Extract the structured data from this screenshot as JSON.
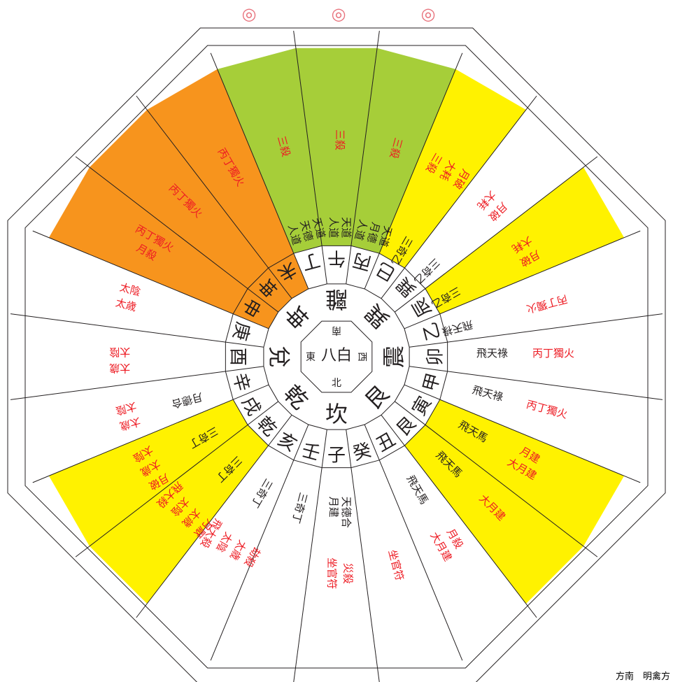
{
  "colors": {
    "yellow": "#fff200",
    "green": "#a6ce39",
    "orange": "#f7941d",
    "red_text": "#ed1c24",
    "black_text": "#231f20",
    "circle_mark": "#e8727c",
    "line": "#231f20",
    "white": "#ffffff"
  },
  "marks": {
    "symbol": "◎",
    "count": 3
  },
  "center": {
    "number": "八白",
    "north": "北",
    "south": "南",
    "east": "東",
    "west": "西"
  },
  "trigrams": [
    "坎",
    "艮",
    "震",
    "巽",
    "離",
    "坤",
    "兌",
    "乾"
  ],
  "sectors": [
    {
      "inner": "子",
      "fill": "white",
      "outer": [
        {
          "text": "月建",
          "color": "black"
        },
        {
          "text": "天徳合",
          "color": "black"
        }
      ],
      "rim": [
        {
          "text": "坐官符",
          "color": "red"
        },
        {
          "text": "災殺",
          "color": "red"
        }
      ]
    },
    {
      "inner": "癸",
      "fill": "white",
      "outer": [],
      "rim": [
        {
          "text": "坐官符",
          "color": "red"
        }
      ]
    },
    {
      "inner": "丑",
      "fill": "white",
      "outer": [
        {
          "text": "飛天馬",
          "color": "black"
        }
      ],
      "rim": [
        {
          "text": "大月建",
          "color": "red"
        },
        {
          "text": "月殺",
          "color": "red"
        }
      ]
    },
    {
      "inner": "艮",
      "fill": "yellow",
      "outer": [
        {
          "text": "飛天馬",
          "color": "black"
        }
      ],
      "rim": [
        {
          "text": "大月建",
          "color": "red"
        }
      ]
    },
    {
      "inner": "寅",
      "fill": "yellow",
      "outer": [
        {
          "text": "飛天馬",
          "color": "black"
        }
      ],
      "rim": [
        {
          "text": "大月建",
          "color": "red"
        },
        {
          "text": "月建",
          "color": "red"
        }
      ]
    },
    {
      "inner": "甲",
      "fill": "white",
      "outer": [
        {
          "text": "飛天祿",
          "color": "black"
        }
      ],
      "rim": [
        {
          "text": "丙丁獨火",
          "color": "red"
        }
      ]
    },
    {
      "inner": "卯",
      "fill": "white",
      "outer": [
        {
          "text": "飛天祿",
          "color": "black"
        }
      ],
      "rim": [
        {
          "text": "丙丁獨火",
          "color": "red"
        }
      ]
    },
    {
      "inner": "乙",
      "fill": "white",
      "outer": [
        {
          "text": "飛天祿",
          "color": "black"
        }
      ],
      "rim": [
        {
          "text": "丙丁獨火",
          "color": "red"
        }
      ]
    },
    {
      "inner": "辰",
      "fill": "yellow",
      "outer": [
        {
          "text": "三奇乙",
          "color": "black"
        }
      ],
      "rim": [
        {
          "text": "月破",
          "color": "red"
        },
        {
          "text": "大耗",
          "color": "red"
        }
      ]
    },
    {
      "inner": "巽",
      "fill": "white",
      "outer": [
        {
          "text": "三奇乙",
          "color": "black"
        }
      ],
      "rim": [
        {
          "text": "月破",
          "color": "red"
        },
        {
          "text": "大耗",
          "color": "red"
        }
      ]
    },
    {
      "inner": "巳",
      "fill": "yellow",
      "outer": [
        {
          "text": "三奇乙",
          "color": "black"
        }
      ],
      "rim": [
        {
          "text": "月破",
          "color": "red"
        },
        {
          "text": "大耗",
          "color": "red"
        },
        {
          "text": "三殺",
          "color": "red"
        }
      ]
    },
    {
      "inner": "丙",
      "fill": "green",
      "outer": [
        {
          "text": "天道",
          "color": "black"
        },
        {
          "text": "月德",
          "color": "black"
        },
        {
          "text": "人道",
          "color": "black"
        }
      ],
      "rim": [
        {
          "text": "三殺",
          "color": "red"
        }
      ]
    },
    {
      "inner": "午",
      "fill": "green",
      "outer": [
        {
          "text": "天道",
          "color": "black"
        },
        {
          "text": "人道",
          "color": "black"
        }
      ],
      "rim": [
        {
          "text": "三殺",
          "color": "red"
        }
      ]
    },
    {
      "inner": "丁",
      "fill": "green",
      "outer": [
        {
          "text": "天道",
          "color": "black"
        },
        {
          "text": "天德",
          "color": "black"
        },
        {
          "text": "人道",
          "color": "black"
        }
      ],
      "rim": [
        {
          "text": "三殺",
          "color": "red"
        }
      ]
    },
    {
      "inner": "未",
      "fill": "orange",
      "outer": [],
      "rim": [
        {
          "text": "丙丁獨火",
          "color": "red"
        }
      ]
    },
    {
      "inner": "坤",
      "fill": "orange",
      "outer": [],
      "rim": [
        {
          "text": "丙丁獨火",
          "color": "red"
        }
      ]
    },
    {
      "inner": "申",
      "fill": "orange",
      "outer": [],
      "rim": [
        {
          "text": "丙丁獨火",
          "color": "red"
        },
        {
          "text": "月殺",
          "color": "red"
        }
      ]
    },
    {
      "inner": "庚",
      "fill": "white",
      "outer": [],
      "rim": [
        {
          "text": "太陰",
          "color": "red"
        },
        {
          "text": "太歳",
          "color": "red"
        }
      ]
    },
    {
      "inner": "酉",
      "fill": "white",
      "outer": [],
      "rim": [
        {
          "text": "太陰",
          "color": "red"
        },
        {
          "text": "太歳",
          "color": "red"
        }
      ]
    },
    {
      "inner": "辛",
      "fill": "white",
      "outer": [
        {
          "text": "月德合",
          "color": "black"
        }
      ],
      "rim": [
        {
          "text": "太陰",
          "color": "red"
        },
        {
          "text": "太歳",
          "color": "red"
        }
      ]
    },
    {
      "inner": "戌",
      "fill": "yellow",
      "outer": [
        {
          "text": "三奇丁",
          "color": "black"
        }
      ],
      "rim": [
        {
          "text": "太陰",
          "color": "red"
        },
        {
          "text": "太歳",
          "color": "red"
        },
        {
          "text": "月破",
          "color": "red"
        }
      ]
    },
    {
      "inner": "乾",
      "fill": "yellow",
      "outer": [
        {
          "text": "三奇丁",
          "color": "black"
        }
      ],
      "rim": [
        {
          "text": "飛大殺",
          "color": "red"
        },
        {
          "text": "太陰",
          "color": "red"
        },
        {
          "text": "太歳",
          "color": "red"
        },
        {
          "text": "月厭",
          "color": "red"
        }
      ]
    },
    {
      "inner": "亥",
      "fill": "white",
      "outer": [
        {
          "text": "三奇丁",
          "color": "black"
        }
      ],
      "rim": [
        {
          "text": "飛大殺",
          "color": "red"
        },
        {
          "text": "太陰",
          "color": "red"
        },
        {
          "text": "太歳",
          "color": "red"
        },
        {
          "text": "劫殺",
          "color": "red"
        }
      ]
    },
    {
      "inner": "壬",
      "fill": "white",
      "outer": [
        {
          "text": "三奇丁",
          "color": "black"
        }
      ],
      "rim": []
    }
  ],
  "footer_note": "方南　明禽方"
}
